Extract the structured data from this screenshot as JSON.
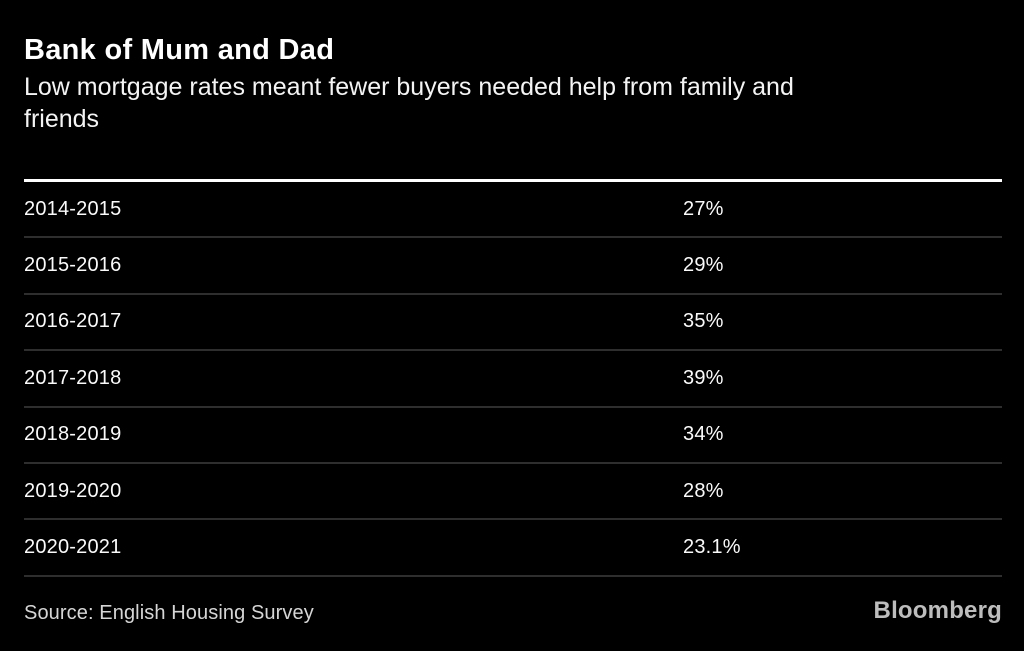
{
  "header": {
    "title": "Bank of Mum and Dad",
    "subtitle_lines": [
      "Low mortgage rates meant fewer buyers needed help from family and",
      "friends"
    ]
  },
  "chart_data": {
    "type": "table",
    "title": "Bank of Mum and Dad",
    "subtitle": "Low mortgage rates meant fewer buyers needed help from family and friends",
    "categories": [
      "2014-2015",
      "2015-2016",
      "2016-2017",
      "2017-2018",
      "2018-2019",
      "2019-2020",
      "2020-2021"
    ],
    "values": [
      27,
      29,
      35,
      39,
      34,
      28,
      23.1
    ],
    "value_unit": "%",
    "source": "English Housing Survey",
    "layout": {
      "grid": "horizontal-separators",
      "legend": "none"
    }
  },
  "table": {
    "rows": [
      {
        "label": "2014-2015",
        "value": "27%"
      },
      {
        "label": "2015-2016",
        "value": "29%"
      },
      {
        "label": "2016-2017",
        "value": "35%"
      },
      {
        "label": "2017-2018",
        "value": "39%"
      },
      {
        "label": "2018-2019",
        "value": "34%"
      },
      {
        "label": "2019-2020",
        "value": "28%"
      },
      {
        "label": "2020-2021",
        "value": "23.1%"
      }
    ]
  },
  "footer": {
    "source": "Source: English Housing Survey",
    "brand": "Bloomberg"
  },
  "colors": {
    "background": "#000000",
    "text": "#ffffff",
    "top_rule": "#ffffff",
    "separator": "#2e2e2e",
    "source_text": "#d6d6d6",
    "brand_text": "#bdbdbd"
  }
}
